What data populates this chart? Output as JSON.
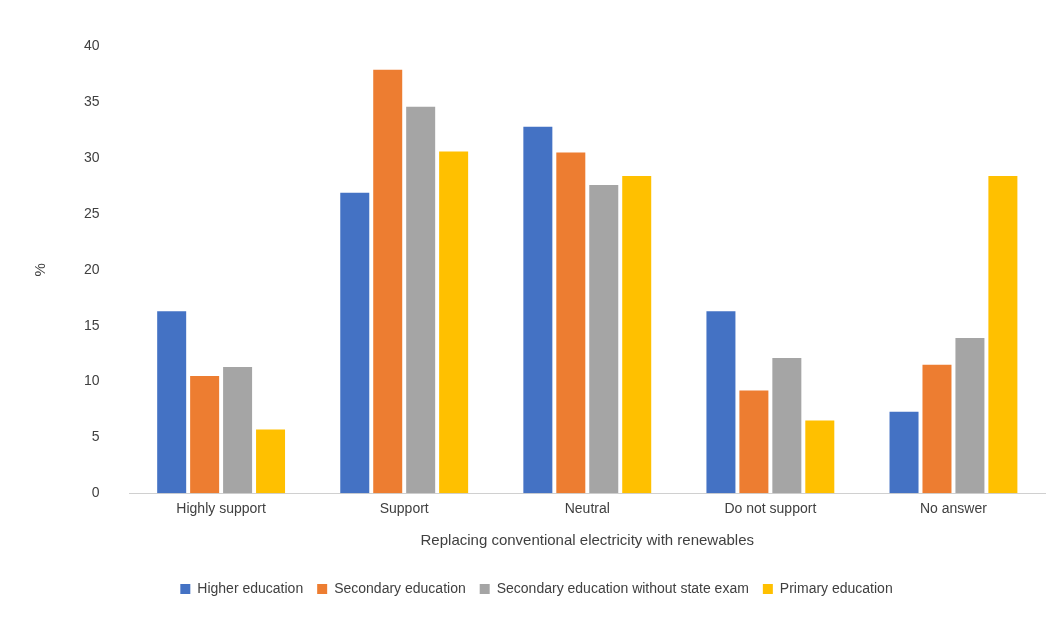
{
  "chart_data": {
    "type": "bar",
    "xlabel": "Replacing conventional electricity with renewables",
    "ylabel": "%",
    "categories": [
      "Highly support",
      "Support",
      "Neutral",
      "Do not support",
      "No answer"
    ],
    "series": [
      {
        "name": "Higher education",
        "color": "#4472c4",
        "values": [
          16.3,
          26.9,
          32.8,
          16.3,
          7.3
        ]
      },
      {
        "name": "Secondary education",
        "color": "#ed7d31",
        "values": [
          10.5,
          37.9,
          30.5,
          9.2,
          11.5
        ]
      },
      {
        "name": "Secondary education without state exam",
        "color": "#a5a5a5",
        "values": [
          11.3,
          34.6,
          27.6,
          12.1,
          13.9
        ]
      },
      {
        "name": "Primary education",
        "color": "#ffc000",
        "values": [
          5.7,
          30.6,
          28.4,
          6.5,
          28.4
        ]
      }
    ],
    "ylim": [
      0,
      40
    ],
    "yticks": [
      0,
      5,
      10,
      15,
      20,
      25,
      30,
      35,
      40
    ],
    "grid": false,
    "legend": "bottom"
  }
}
